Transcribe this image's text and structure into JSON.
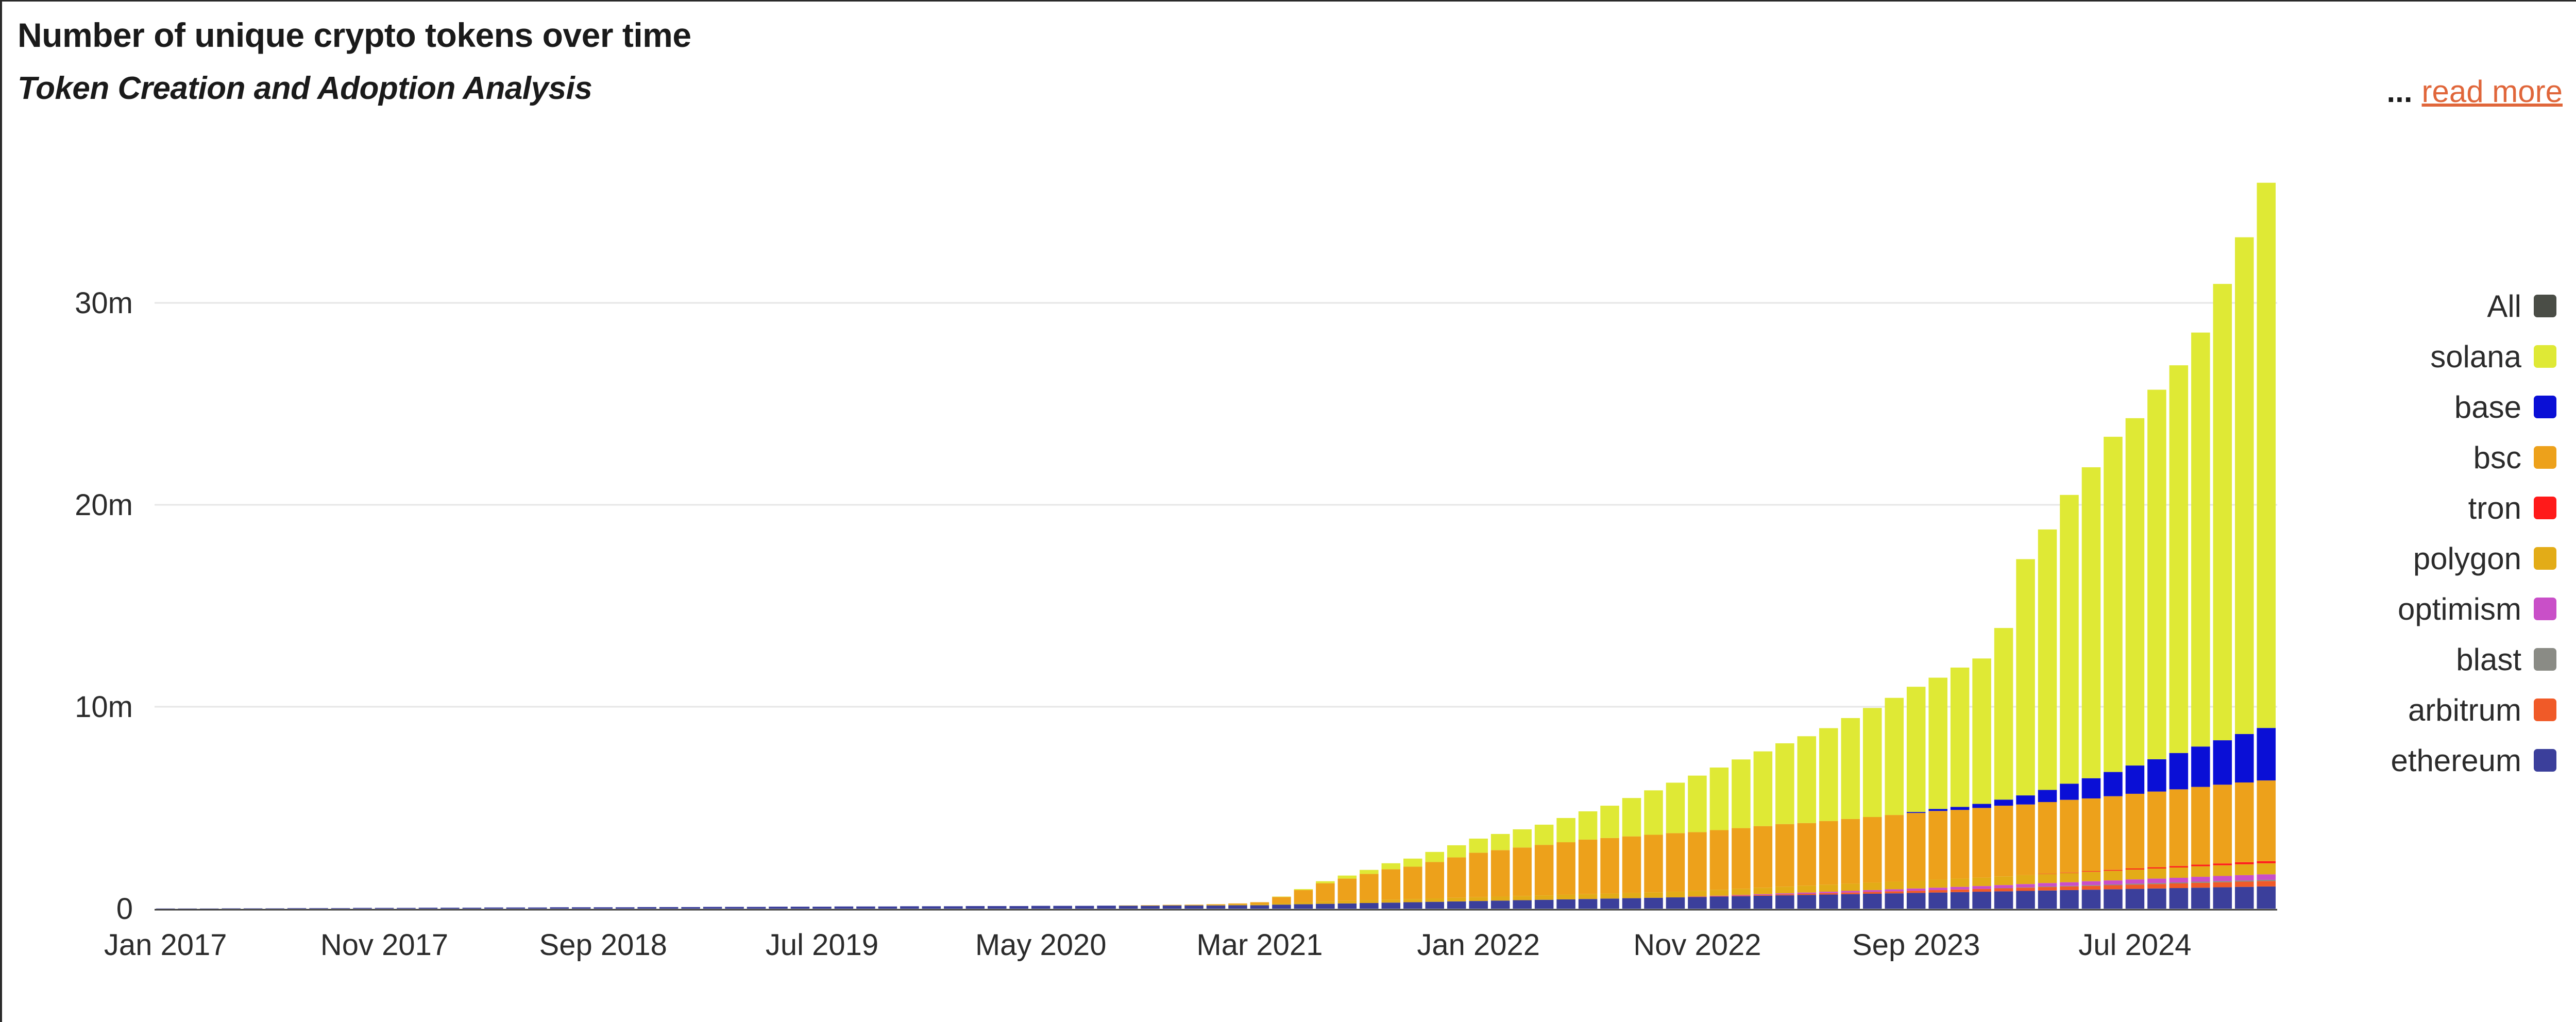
{
  "header": {
    "title": "Number of unique crypto tokens over time",
    "subtitle": "Token Creation and Adoption Analysis",
    "ellipsis": "...",
    "read_more": "read more"
  },
  "colors": {
    "solana": "#dfe935",
    "base": "#0a0fd6",
    "bsc": "#eda11b",
    "tron": "#ff1a1a",
    "polygon": "#e3ac17",
    "optimism": "#c94fc8",
    "blast": "#8a8b85",
    "arbitrum": "#f05a28",
    "ethereum": "#3b3f9b",
    "all": "#4a4d46",
    "grid": "#e6e6e6",
    "axis_text": "#2b2b2b"
  },
  "legend": [
    {
      "label": "All",
      "color": "#4a4d46"
    },
    {
      "label": "solana",
      "color": "#dfe935"
    },
    {
      "label": "base",
      "color": "#0a0fd6"
    },
    {
      "label": "bsc",
      "color": "#eda11b"
    },
    {
      "label": "tron",
      "color": "#ff1a1a"
    },
    {
      "label": "polygon",
      "color": "#e3ac17"
    },
    {
      "label": "optimism",
      "color": "#c94fc8"
    },
    {
      "label": "blast",
      "color": "#8a8b85"
    },
    {
      "label": "arbitrum",
      "color": "#f05a28"
    },
    {
      "label": "ethereum",
      "color": "#3b3f9b"
    }
  ],
  "chart_data": {
    "type": "bar",
    "stacked": true,
    "title": "Number of unique crypto tokens over time",
    "subtitle": "Token Creation and Adoption Analysis",
    "xlabel": "",
    "ylabel": "",
    "ylim": [
      0,
      36000000
    ],
    "yticks": [
      0,
      10000000,
      20000000,
      30000000
    ],
    "ytick_labels": [
      "0",
      "10m",
      "20m",
      "30m"
    ],
    "xtick_labels": [
      "Jan 2017",
      "Nov 2017",
      "Sep 2018",
      "Jul 2019",
      "May 2020",
      "Mar 2021",
      "Jan 2022",
      "Nov 2022",
      "Sep 2023",
      "Jul 2024"
    ],
    "grid": true,
    "legend_position": "right",
    "series_order": [
      "ethereum",
      "arbitrum",
      "blast",
      "optimism",
      "polygon",
      "tron",
      "bsc",
      "base",
      "solana"
    ],
    "series_units": "millions of tokens",
    "categories": [
      "Jan 2017",
      "Feb 2017",
      "Mar 2017",
      "Apr 2017",
      "May 2017",
      "Jun 2017",
      "Jul 2017",
      "Aug 2017",
      "Sep 2017",
      "Oct 2017",
      "Nov 2017",
      "Dec 2017",
      "Jan 2018",
      "Feb 2018",
      "Mar 2018",
      "Apr 2018",
      "May 2018",
      "Jun 2018",
      "Jul 2018",
      "Aug 2018",
      "Sep 2018",
      "Oct 2018",
      "Nov 2018",
      "Dec 2018",
      "Jan 2019",
      "Feb 2019",
      "Mar 2019",
      "Apr 2019",
      "May 2019",
      "Jun 2019",
      "Jul 2019",
      "Aug 2019",
      "Sep 2019",
      "Oct 2019",
      "Nov 2019",
      "Dec 2019",
      "Jan 2020",
      "Feb 2020",
      "Mar 2020",
      "Apr 2020",
      "May 2020",
      "Jun 2020",
      "Jul 2020",
      "Aug 2020",
      "Sep 2020",
      "Oct 2020",
      "Nov 2020",
      "Dec 2020",
      "Jan 2021",
      "Feb 2021",
      "Mar 2021",
      "Apr 2021",
      "May 2021",
      "Jun 2021",
      "Jul 2021",
      "Aug 2021",
      "Sep 2021",
      "Oct 2021",
      "Nov 2021",
      "Dec 2021",
      "Jan 2022",
      "Feb 2022",
      "Mar 2022",
      "Apr 2022",
      "May 2022",
      "Jun 2022",
      "Jul 2022",
      "Aug 2022",
      "Sep 2022",
      "Oct 2022",
      "Nov 2022",
      "Dec 2022",
      "Jan 2023",
      "Feb 2023",
      "Mar 2023",
      "Apr 2023",
      "May 2023",
      "Jun 2023",
      "Jul 2023",
      "Aug 2023",
      "Sep 2023",
      "Oct 2023",
      "Nov 2023",
      "Dec 2023",
      "Jan 2024",
      "Feb 2024",
      "Mar 2024",
      "Apr 2024",
      "May 2024",
      "Jun 2024",
      "Jul 2024",
      "Aug 2024",
      "Sep 2024",
      "Oct 2024",
      "Nov 2024",
      "Dec 2024",
      "Jan 2025"
    ],
    "series": [
      {
        "name": "ethereum",
        "values": [
          0.01,
          0.01,
          0.01,
          0.02,
          0.02,
          0.02,
          0.03,
          0.03,
          0.03,
          0.04,
          0.04,
          0.04,
          0.05,
          0.05,
          0.05,
          0.06,
          0.06,
          0.06,
          0.07,
          0.07,
          0.07,
          0.07,
          0.08,
          0.08,
          0.08,
          0.09,
          0.09,
          0.09,
          0.1,
          0.1,
          0.1,
          0.11,
          0.11,
          0.11,
          0.12,
          0.12,
          0.12,
          0.13,
          0.13,
          0.13,
          0.14,
          0.14,
          0.14,
          0.15,
          0.15,
          0.15,
          0.16,
          0.16,
          0.16,
          0.17,
          0.17,
          0.2,
          0.22,
          0.24,
          0.26,
          0.28,
          0.3,
          0.32,
          0.34,
          0.36,
          0.38,
          0.4,
          0.42,
          0.44,
          0.46,
          0.48,
          0.5,
          0.52,
          0.54,
          0.56,
          0.58,
          0.6,
          0.62,
          0.64,
          0.66,
          0.68,
          0.7,
          0.72,
          0.74,
          0.76,
          0.78,
          0.8,
          0.82,
          0.84,
          0.86,
          0.88,
          0.9,
          0.92,
          0.94,
          0.96,
          0.98,
          1.0,
          1.02,
          1.04,
          1.06,
          1.08,
          1.1
        ]
      },
      {
        "name": "arbitrum",
        "values": [
          0,
          0,
          0,
          0,
          0,
          0,
          0,
          0,
          0,
          0,
          0,
          0,
          0,
          0,
          0,
          0,
          0,
          0,
          0,
          0,
          0,
          0,
          0,
          0,
          0,
          0,
          0,
          0,
          0,
          0,
          0,
          0,
          0,
          0,
          0,
          0,
          0,
          0,
          0,
          0,
          0,
          0,
          0,
          0,
          0,
          0,
          0,
          0,
          0,
          0,
          0,
          0,
          0,
          0,
          0,
          0,
          0,
          0,
          0,
          0,
          0,
          0,
          0,
          0,
          0,
          0,
          0,
          0,
          0,
          0,
          0.01,
          0.02,
          0.03,
          0.04,
          0.05,
          0.06,
          0.07,
          0.08,
          0.09,
          0.1,
          0.11,
          0.12,
          0.13,
          0.14,
          0.15,
          0.16,
          0.17,
          0.18,
          0.19,
          0.2,
          0.21,
          0.22,
          0.23,
          0.24,
          0.25,
          0.26,
          0.27
        ]
      },
      {
        "name": "blast",
        "values": [
          0,
          0,
          0,
          0,
          0,
          0,
          0,
          0,
          0,
          0,
          0,
          0,
          0,
          0,
          0,
          0,
          0,
          0,
          0,
          0,
          0,
          0,
          0,
          0,
          0,
          0,
          0,
          0,
          0,
          0,
          0,
          0,
          0,
          0,
          0,
          0,
          0,
          0,
          0,
          0,
          0,
          0,
          0,
          0,
          0,
          0,
          0,
          0,
          0,
          0,
          0,
          0,
          0,
          0,
          0,
          0,
          0,
          0,
          0,
          0,
          0,
          0,
          0,
          0,
          0,
          0,
          0,
          0,
          0,
          0,
          0,
          0,
          0,
          0,
          0,
          0,
          0,
          0,
          0,
          0,
          0,
          0,
          0,
          0,
          0.01,
          0.02,
          0.03,
          0.03,
          0.04,
          0.04,
          0.05,
          0.05,
          0.05,
          0.06,
          0.06,
          0.06,
          0.06
        ]
      },
      {
        "name": "optimism",
        "values": [
          0,
          0,
          0,
          0,
          0,
          0,
          0,
          0,
          0,
          0,
          0,
          0,
          0,
          0,
          0,
          0,
          0,
          0,
          0,
          0,
          0,
          0,
          0,
          0,
          0,
          0,
          0,
          0,
          0,
          0,
          0,
          0,
          0,
          0,
          0,
          0,
          0,
          0,
          0,
          0,
          0,
          0,
          0,
          0,
          0,
          0,
          0,
          0,
          0,
          0,
          0,
          0,
          0,
          0,
          0,
          0,
          0,
          0,
          0,
          0,
          0,
          0,
          0,
          0,
          0,
          0,
          0,
          0,
          0,
          0,
          0.01,
          0.02,
          0.03,
          0.04,
          0.05,
          0.06,
          0.07,
          0.08,
          0.09,
          0.1,
          0.11,
          0.12,
          0.13,
          0.14,
          0.15,
          0.16,
          0.17,
          0.18,
          0.19,
          0.2,
          0.21,
          0.22,
          0.23,
          0.24,
          0.25,
          0.26,
          0.27
        ]
      },
      {
        "name": "polygon",
        "values": [
          0,
          0,
          0,
          0,
          0,
          0,
          0,
          0,
          0,
          0,
          0,
          0,
          0,
          0,
          0,
          0,
          0,
          0,
          0,
          0,
          0,
          0,
          0,
          0,
          0,
          0,
          0,
          0,
          0,
          0,
          0,
          0,
          0,
          0,
          0,
          0,
          0,
          0,
          0,
          0,
          0,
          0,
          0,
          0,
          0.01,
          0.01,
          0.02,
          0.02,
          0.03,
          0.04,
          0.05,
          0.08,
          0.1,
          0.12,
          0.13,
          0.14,
          0.15,
          0.16,
          0.17,
          0.18,
          0.19,
          0.2,
          0.21,
          0.22,
          0.23,
          0.24,
          0.25,
          0.26,
          0.27,
          0.28,
          0.29,
          0.3,
          0.31,
          0.32,
          0.33,
          0.34,
          0.35,
          0.36,
          0.37,
          0.38,
          0.39,
          0.4,
          0.41,
          0.42,
          0.43,
          0.44,
          0.45,
          0.46,
          0.47,
          0.48,
          0.49,
          0.5,
          0.51,
          0.52,
          0.53,
          0.54,
          0.55
        ]
      },
      {
        "name": "tron",
        "values": [
          0,
          0,
          0,
          0,
          0,
          0,
          0,
          0,
          0,
          0,
          0,
          0,
          0,
          0,
          0,
          0,
          0,
          0,
          0,
          0,
          0,
          0,
          0,
          0,
          0,
          0,
          0,
          0,
          0,
          0,
          0,
          0,
          0,
          0,
          0,
          0,
          0,
          0,
          0,
          0,
          0,
          0,
          0,
          0,
          0,
          0,
          0,
          0,
          0,
          0,
          0,
          0,
          0,
          0,
          0,
          0,
          0,
          0,
          0,
          0,
          0,
          0,
          0,
          0,
          0,
          0,
          0,
          0,
          0,
          0,
          0,
          0,
          0,
          0,
          0,
          0,
          0,
          0,
          0,
          0,
          0,
          0,
          0,
          0,
          0,
          0,
          0.01,
          0.02,
          0.03,
          0.04,
          0.05,
          0.06,
          0.07,
          0.08,
          0.09,
          0.1,
          0.1
        ]
      },
      {
        "name": "bsc",
        "values": [
          0,
          0,
          0,
          0,
          0,
          0,
          0,
          0,
          0,
          0,
          0,
          0,
          0,
          0,
          0,
          0,
          0,
          0,
          0,
          0,
          0,
          0,
          0,
          0,
          0,
          0,
          0,
          0,
          0,
          0,
          0,
          0,
          0,
          0,
          0,
          0,
          0,
          0,
          0,
          0,
          0,
          0,
          0,
          0,
          0,
          0.01,
          0.01,
          0.02,
          0.03,
          0.05,
          0.1,
          0.3,
          0.6,
          0.9,
          1.1,
          1.3,
          1.5,
          1.6,
          1.8,
          2.0,
          2.2,
          2.3,
          2.4,
          2.5,
          2.6,
          2.7,
          2.75,
          2.8,
          2.85,
          2.9,
          2.9,
          2.95,
          3.0,
          3.05,
          3.1,
          3.1,
          3.15,
          3.2,
          3.25,
          3.3,
          3.35,
          3.4,
          3.4,
          3.45,
          3.5,
          3.5,
          3.55,
          3.6,
          3.6,
          3.65,
          3.7,
          3.75,
          3.8,
          3.85,
          3.9,
          3.95,
          4.0
        ]
      },
      {
        "name": "base",
        "values": [
          0,
          0,
          0,
          0,
          0,
          0,
          0,
          0,
          0,
          0,
          0,
          0,
          0,
          0,
          0,
          0,
          0,
          0,
          0,
          0,
          0,
          0,
          0,
          0,
          0,
          0,
          0,
          0,
          0,
          0,
          0,
          0,
          0,
          0,
          0,
          0,
          0,
          0,
          0,
          0,
          0,
          0,
          0,
          0,
          0,
          0,
          0,
          0,
          0,
          0,
          0,
          0,
          0,
          0,
          0,
          0,
          0,
          0,
          0,
          0,
          0,
          0,
          0,
          0,
          0,
          0,
          0,
          0,
          0,
          0,
          0,
          0,
          0,
          0,
          0,
          0,
          0,
          0,
          0,
          0,
          0.05,
          0.1,
          0.15,
          0.2,
          0.3,
          0.45,
          0.6,
          0.8,
          1.0,
          1.2,
          1.4,
          1.6,
          1.8,
          2.0,
          2.2,
          2.4,
          2.6
        ]
      },
      {
        "name": "solana",
        "values": [
          0,
          0,
          0,
          0,
          0,
          0,
          0,
          0,
          0,
          0,
          0,
          0,
          0,
          0,
          0,
          0,
          0,
          0,
          0,
          0,
          0,
          0,
          0,
          0,
          0,
          0,
          0,
          0,
          0,
          0,
          0,
          0,
          0,
          0,
          0,
          0,
          0,
          0,
          0,
          0,
          0,
          0,
          0,
          0,
          0,
          0,
          0,
          0,
          0,
          0,
          0,
          0.02,
          0.05,
          0.1,
          0.15,
          0.2,
          0.3,
          0.4,
          0.5,
          0.6,
          0.7,
          0.8,
          0.9,
          1.0,
          1.2,
          1.4,
          1.6,
          1.9,
          2.2,
          2.5,
          2.8,
          3.1,
          3.4,
          3.7,
          4.0,
          4.3,
          4.6,
          5.0,
          5.4,
          5.8,
          6.2,
          6.5,
          6.9,
          7.2,
          8.5,
          11.7,
          12.9,
          14.3,
          15.4,
          16.6,
          17.2,
          18.3,
          19.2,
          20.5,
          22.6,
          24.6,
          27.0
        ]
      }
    ]
  }
}
